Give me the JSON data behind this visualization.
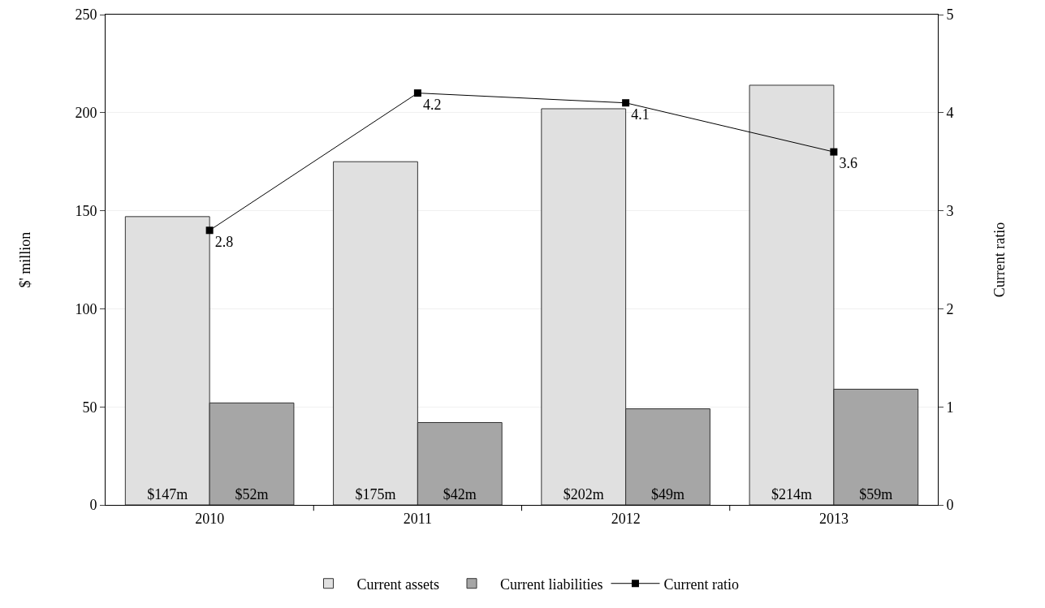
{
  "chart_data": {
    "type": "bar",
    "ylabel": "$' million",
    "y2label": "Current ratio",
    "categories": [
      "2010",
      "2011",
      "2012",
      "2013"
    ],
    "series": [
      {
        "name": "Current assets",
        "color": "#e0e0e0",
        "values": [
          147,
          175,
          202,
          214
        ],
        "value_labels": [
          "$147m",
          "$175m",
          "$202m",
          "$214m"
        ]
      },
      {
        "name": "Current liabilities",
        "color": "#a6a6a6",
        "values": [
          52,
          42,
          49,
          59
        ],
        "value_labels": [
          "$52m",
          "$42m",
          "$49m",
          "$59m"
        ]
      },
      {
        "name": "Current ratio",
        "type": "line",
        "axis": "y2",
        "color": "#000000",
        "marker": "square",
        "line_style": "solid",
        "values": [
          2.8,
          4.2,
          4.1,
          3.6
        ],
        "value_labels": [
          "2.8",
          "4.2",
          "4.1",
          "3.6"
        ]
      }
    ],
    "ylim": [
      0,
      250
    ],
    "yticks": [
      0,
      50,
      100,
      150,
      200,
      250
    ],
    "y2lim": [
      0,
      5
    ],
    "y2ticks": [
      0,
      1,
      2,
      3,
      4,
      5
    ],
    "grid": "y",
    "legend": "bottom"
  }
}
